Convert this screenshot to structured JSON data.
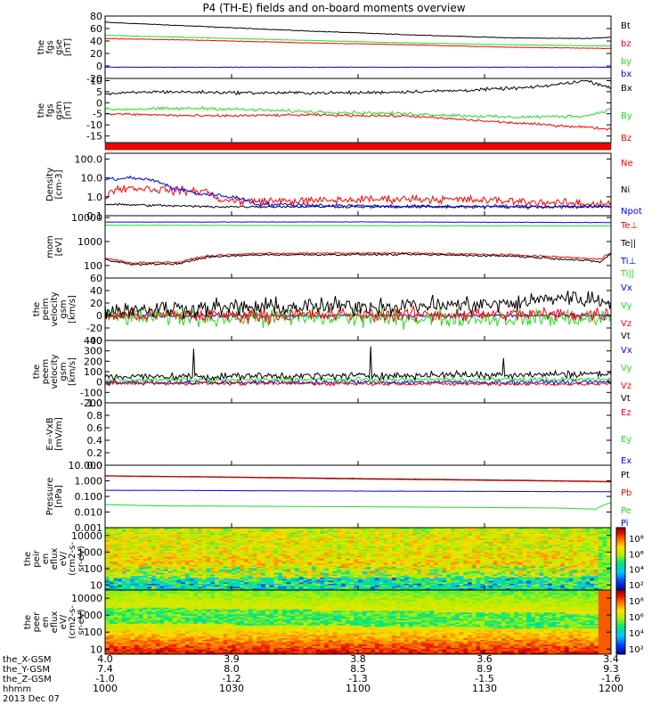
{
  "title": "P4 (TH-E) fields and on-board moments overview",
  "colors": {
    "black": "#000000",
    "red": "#ff0000",
    "green": "#22dd22",
    "blue": "#0000ff"
  },
  "chart_data": [
    {
      "type": "line",
      "id": "fgs-gse",
      "ylabel": [
        "the",
        "fgs",
        "gse",
        "[nT]"
      ],
      "ylim": [
        -20,
        80
      ],
      "yticks": [
        "80",
        "60",
        "40",
        "20",
        "0",
        "-20"
      ],
      "series": [
        {
          "name": "Bt",
          "color": "black",
          "x": [
            0,
            0.2,
            0.4,
            0.6,
            0.8,
            0.95,
            1
          ],
          "y": [
            70,
            63,
            56,
            50,
            45,
            44,
            46
          ],
          "noise": 0.4
        },
        {
          "name": "bz",
          "color": "red",
          "x": [
            0,
            0.2,
            0.4,
            0.6,
            0.8,
            1
          ],
          "y": [
            44,
            41,
            37,
            34,
            30,
            28
          ],
          "noise": 0.3
        },
        {
          "name": "by",
          "color": "green",
          "x": [
            0,
            0.2,
            0.4,
            0.6,
            0.8,
            1
          ],
          "y": [
            49,
            45,
            41,
            37,
            34,
            32
          ],
          "noise": 0.3
        },
        {
          "name": "bx",
          "color": "blue",
          "x": [
            0,
            0.5,
            1
          ],
          "y": [
            -2,
            -2,
            -2
          ],
          "noise": 0.3
        }
      ]
    },
    {
      "type": "line",
      "id": "fgs-gsm",
      "ylabel": [
        "the",
        "fgs",
        "gsm",
        "[nT]"
      ],
      "ylim": [
        -18,
        11
      ],
      "yticks": [
        "10",
        "5",
        "0",
        "-5",
        "-10",
        "-15"
      ],
      "series": [
        {
          "name": "Bx",
          "color": "black",
          "x": [
            0,
            0.1,
            0.3,
            0.5,
            0.7,
            0.85,
            0.95,
            1
          ],
          "y": [
            4,
            5,
            4.5,
            4.5,
            5.5,
            7,
            10,
            7
          ],
          "noise": 0.5
        },
        {
          "name": "By",
          "color": "green",
          "x": [
            0,
            0.2,
            0.4,
            0.6,
            0.8,
            0.95,
            1
          ],
          "y": [
            -3,
            -2.5,
            -4,
            -5,
            -6.5,
            -6,
            -3
          ],
          "noise": 0.5
        },
        {
          "name": "Bz",
          "color": "red",
          "x": [
            0,
            0.2,
            0.4,
            0.6,
            0.8,
            0.95,
            1
          ],
          "y": [
            -5,
            -6,
            -5.5,
            -6,
            -9,
            -11,
            -12
          ],
          "noise": 0.4
        }
      ]
    },
    {
      "type": "line",
      "id": "density",
      "ylabel": [
        "Density",
        "[cm-3]"
      ],
      "ylog": true,
      "ylim": [
        0.1,
        200
      ],
      "yticks": [
        "100.0",
        "10.0",
        "1.0",
        "0.1"
      ],
      "series": [
        {
          "name": "Ne",
          "color": "red",
          "x": [
            0,
            0.02,
            0.05,
            0.15,
            0.2,
            0.22,
            0.25,
            0.4,
            0.6,
            0.8,
            0.95,
            1
          ],
          "y": [
            1,
            2.5,
            3,
            2,
            2,
            0.8,
            0.6,
            0.6,
            0.8,
            0.6,
            0.4,
            0.5
          ],
          "noise": 0.5
        },
        {
          "name": "Ni",
          "color": "black",
          "x": [
            0,
            0.2,
            0.4,
            0.6,
            0.8,
            1
          ],
          "y": [
            0.4,
            0.3,
            0.3,
            0.3,
            0.3,
            0.3
          ],
          "noise": 0.15
        },
        {
          "name": "Npot",
          "color": "blue",
          "x": [
            0,
            0.05,
            0.1,
            0.13,
            0.18,
            0.25,
            0.3,
            0.6,
            0.8,
            1
          ],
          "y": [
            8,
            10,
            7,
            3,
            1.5,
            1,
            0.4,
            0.3,
            0.3,
            0.3
          ],
          "noise": 0.25
        }
      ]
    },
    {
      "type": "line",
      "id": "mom-temp",
      "ylabel": [
        "mom",
        "[eV]"
      ],
      "ylog": true,
      "ylim": [
        30,
        12000
      ],
      "yticks": [
        "10000",
        "1000",
        "100"
      ],
      "series": [
        {
          "name": "Te⊥",
          "color": "red",
          "x": [
            0,
            0.05,
            0.15,
            0.2,
            0.3,
            0.6,
            0.8,
            0.95,
            0.98,
            1
          ],
          "y": [
            200,
            130,
            140,
            250,
            320,
            330,
            280,
            200,
            180,
            350
          ],
          "noise": 0.08
        },
        {
          "name": "Te||",
          "color": "black",
          "x": [
            0,
            0.05,
            0.15,
            0.2,
            0.3,
            0.6,
            0.8,
            0.95,
            0.98,
            1
          ],
          "y": [
            180,
            110,
            120,
            220,
            280,
            290,
            250,
            160,
            140,
            300
          ],
          "noise": 0.1
        },
        {
          "name": "Ti⊥",
          "color": "blue",
          "x": [
            0,
            0.5,
            1
          ],
          "y": [
            6500,
            6600,
            6200
          ],
          "noise": 0.02
        },
        {
          "name": "Ti||",
          "color": "green",
          "x": [
            0,
            0.5,
            1
          ],
          "y": [
            4800,
            4600,
            4500
          ],
          "noise": 0.02
        }
      ]
    },
    {
      "type": "line",
      "id": "peim-velocity",
      "ylabel": [
        "the",
        "peim",
        "velocity",
        "gsm",
        "[km/s]"
      ],
      "ylim": [
        -40,
        60
      ],
      "yticks": [
        "60",
        "40",
        "20",
        "0",
        "-20",
        "-40"
      ],
      "series": [
        {
          "name": "Vx",
          "color": "blue",
          "x": [
            0,
            1
          ],
          "y": [
            0,
            0
          ],
          "noise": 2
        },
        {
          "name": "Vy",
          "color": "green",
          "x": [
            0,
            1
          ],
          "y": [
            -2,
            -5
          ],
          "noise": 10
        },
        {
          "name": "Vz",
          "color": "red",
          "x": [
            0,
            1
          ],
          "y": [
            0,
            2
          ],
          "noise": 8
        },
        {
          "name": "Vt",
          "color": "black",
          "x": [
            0,
            0.4,
            0.8,
            0.9,
            1
          ],
          "y": [
            10,
            14,
            18,
            30,
            22
          ],
          "noise": 10
        }
      ]
    },
    {
      "type": "line",
      "id": "peem-velocity",
      "ylabel": [
        "the",
        "peem",
        "velocity",
        "gsm",
        "[km/s]"
      ],
      "ylim": [
        -200,
        400
      ],
      "yticks": [
        "400",
        "300",
        "200",
        "100",
        "0",
        "-100",
        "-200"
      ],
      "series": [
        {
          "name": "Vx",
          "color": "blue",
          "x": [
            0,
            1
          ],
          "y": [
            -5,
            0
          ],
          "noise": 15
        },
        {
          "name": "Vy",
          "color": "green",
          "x": [
            0,
            1
          ],
          "y": [
            20,
            25
          ],
          "noise": 15
        },
        {
          "name": "Vz",
          "color": "red",
          "x": [
            0,
            1
          ],
          "y": [
            -10,
            -20
          ],
          "noise": 12
        },
        {
          "name": "Vt",
          "color": "black",
          "x": [
            0,
            0.5,
            1
          ],
          "y": [
            50,
            60,
            80
          ],
          "noise": 25
        }
      ]
    },
    {
      "type": "line",
      "id": "efield",
      "ylabel": [
        "E=-VxB",
        "[mV/m]"
      ],
      "ylim": [
        0,
        1
      ],
      "yticks": [
        "1.0",
        "0.8",
        "0.6",
        "0.4",
        "0.2",
        "0.0"
      ],
      "series": [
        {
          "name": "Ez",
          "color": "red",
          "x": [],
          "y": []
        },
        {
          "name": "Ey",
          "color": "green",
          "x": [],
          "y": []
        },
        {
          "name": "Ex",
          "color": "blue",
          "x": [],
          "y": []
        }
      ]
    },
    {
      "type": "line",
      "id": "pressure",
      "ylabel": [
        "Pressure",
        "[nPa]"
      ],
      "ylog": true,
      "ylim": [
        0.001,
        10
      ],
      "yticks": [
        "10.000",
        "1.000",
        "0.100",
        "0.010",
        "0.001"
      ],
      "series": [
        {
          "name": "Pt",
          "color": "black",
          "x": [
            0,
            0.5,
            1
          ],
          "y": [
            2.1,
            1.4,
            0.9
          ],
          "noise": 0.01
        },
        {
          "name": "Pb",
          "color": "red",
          "x": [
            0,
            0.5,
            1
          ],
          "y": [
            2.0,
            1.3,
            0.85
          ],
          "noise": 0.01
        },
        {
          "name": "Pe",
          "color": "green",
          "x": [
            0,
            0.1,
            0.5,
            0.9,
            0.97,
            1
          ],
          "y": [
            0.03,
            0.025,
            0.022,
            0.018,
            0.015,
            0.04
          ],
          "noise": 0.02
        },
        {
          "name": "Pi",
          "color": "blue",
          "x": [
            0,
            0.5,
            1
          ],
          "y": [
            0.25,
            0.22,
            0.2
          ],
          "noise": 0.02
        }
      ]
    },
    {
      "type": "heatmap",
      "id": "peir-spectrogram",
      "ylabel": [
        "the",
        "peir",
        "en",
        "eflux",
        "eV/",
        "(cm2-s-",
        "sr-eV)"
      ],
      "ylog": true,
      "ylim": [
        5,
        30000
      ],
      "yticks": [
        "10000",
        "1000",
        "100",
        "10"
      ],
      "colorbar": {
        "ticks": [
          "10⁸",
          "10⁶",
          "10⁴",
          "10²"
        ]
      }
    },
    {
      "type": "heatmap",
      "id": "peer-spectrogram",
      "ylabel": [
        "the",
        "peer",
        "en",
        "eflux",
        "eV/",
        "(cm2-s-",
        "sr-eV)"
      ],
      "ylog": true,
      "ylim": [
        5,
        30000
      ],
      "yticks": [
        "10000",
        "1000",
        "100",
        "10"
      ],
      "colorbar": {
        "ticks": [
          "10⁸",
          "10⁶",
          "10⁴",
          "10²"
        ]
      }
    }
  ],
  "xaxis": {
    "row_labels": [
      "the_X-GSM",
      "the_Y-GSM",
      "the_Z-GSM",
      "hhmm",
      "2013 Dec 07"
    ],
    "ticks": [
      {
        "values": [
          "4.0",
          "7.4",
          "-1.0",
          "1000"
        ]
      },
      {
        "values": [
          "3.9",
          "8.0",
          "-1.2",
          "1030"
        ]
      },
      {
        "values": [
          "3.8",
          "8.5",
          "-1.3",
          "1100"
        ]
      },
      {
        "values": [
          "3.6",
          "8.9",
          "-1.5",
          "1130"
        ]
      },
      {
        "values": [
          "3.4",
          "9.3",
          "-1.6",
          "1200"
        ]
      }
    ]
  }
}
